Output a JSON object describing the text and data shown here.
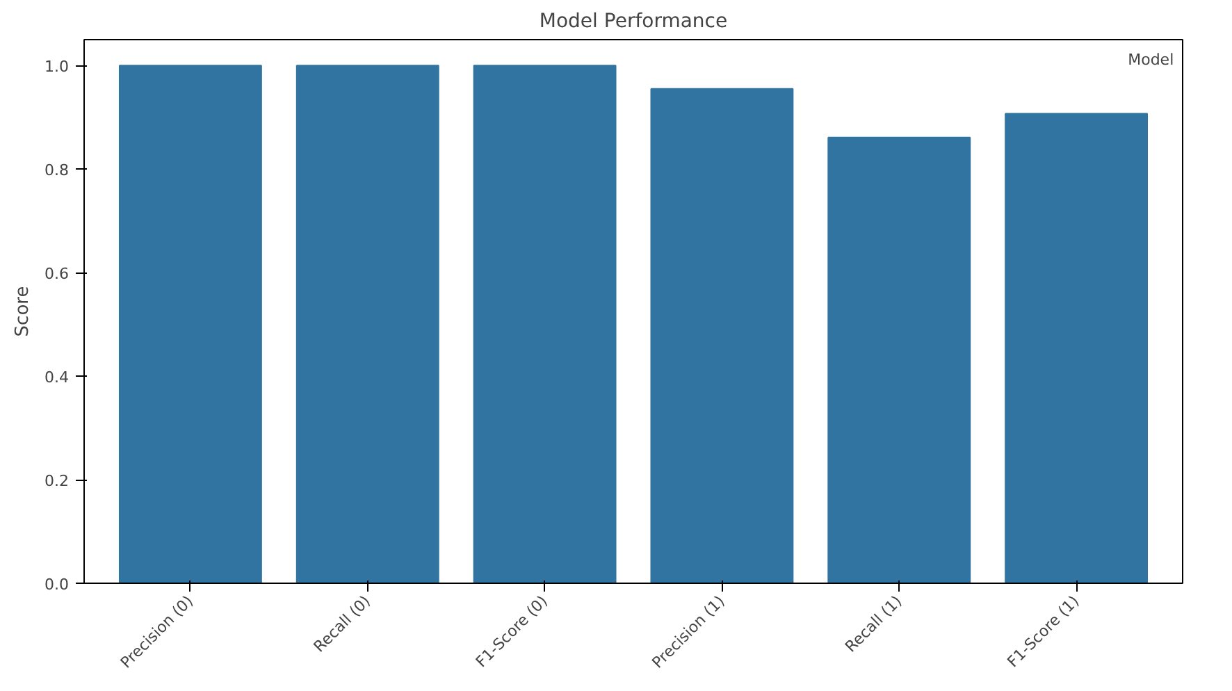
{
  "chart_data": {
    "type": "bar",
    "title": "Model Performance",
    "ylabel": "Score",
    "legend_title": "Model",
    "categories": [
      "Precision (0)",
      "Recall (0)",
      "F1-Score (0)",
      "Precision (1)",
      "Recall (1)",
      "F1-Score (1)"
    ],
    "series": [
      {
        "color": "#3274a1",
        "values": [
          1.0,
          1.0,
          1.0,
          0.955,
          0.861,
          0.907
        ]
      }
    ],
    "ylim": [
      0,
      1.05
    ],
    "yticks": [
      {
        "value": 0,
        "label": "0.0"
      },
      {
        "value": 0.2,
        "label": "0.2"
      },
      {
        "value": 0.4,
        "label": "0.4"
      },
      {
        "value": 0.6,
        "label": "0.6"
      },
      {
        "value": 0.8,
        "label": "0.8"
      },
      {
        "value": 1.0,
        "label": "1.0"
      }
    ],
    "grid": false
  }
}
